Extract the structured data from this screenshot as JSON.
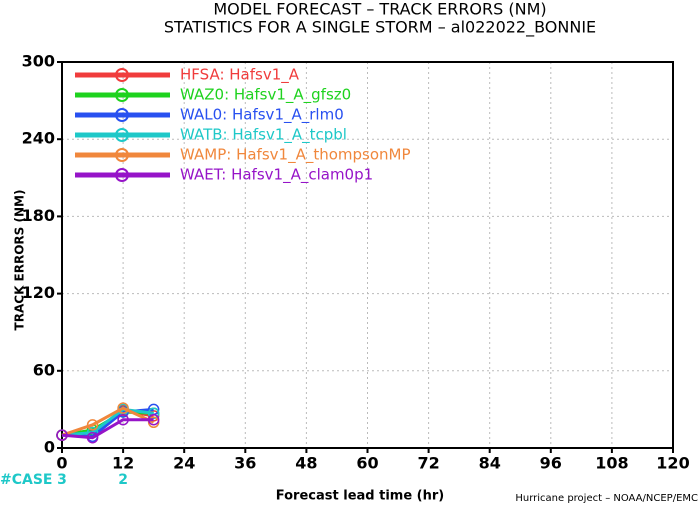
{
  "chart_data": {
    "type": "line",
    "title": "MODEL FORECAST – TRACK ERRORS (NM)",
    "subtitle": "STATISTICS FOR A SINGLE STORM – al022022_BONNIE",
    "xlabel": "Forecast lead time (hr)",
    "ylabel": "TRACK ERRORS (NM)",
    "credit": "Hurricane project – NOAA/NCEP/EMC",
    "x": [
      0,
      6,
      12,
      18
    ],
    "xlim": [
      0,
      120
    ],
    "xticks": [
      0,
      12,
      24,
      36,
      48,
      60,
      72,
      84,
      96,
      108,
      120
    ],
    "ylim": [
      0,
      300
    ],
    "yticks": [
      0,
      60,
      120,
      180,
      240,
      300
    ],
    "grid": true,
    "series": [
      {
        "name": "HFSA: Hafsv1_A",
        "color": "#f03c3c",
        "values": [
          10,
          12,
          29,
          25
        ]
      },
      {
        "name": "WAZ0: Hafsv1_A_gfsz0",
        "color": "#1ed21e",
        "values": [
          10,
          14,
          28,
          27
        ]
      },
      {
        "name": "WAL0: Hafsv1_A_rlm0",
        "color": "#2850f0",
        "values": [
          10,
          9,
          28,
          30
        ]
      },
      {
        "name": "WATB: Hafsv1_A_tcpbl",
        "color": "#1ec8c8",
        "values": [
          10,
          12,
          30,
          27
        ]
      },
      {
        "name": "WAMP: Hafsv1_A_thompsonMP",
        "color": "#f0873c",
        "values": [
          10,
          18,
          31,
          20
        ]
      },
      {
        "name": "WAET: Hafsv1_A_clam0p1",
        "color": "#9614c8",
        "values": [
          10,
          8,
          22,
          22
        ]
      }
    ],
    "cases": {
      "label": "#CASE",
      "color": "#1ec8c8",
      "x": [
        0,
        12
      ],
      "values": [
        3,
        2
      ]
    }
  }
}
